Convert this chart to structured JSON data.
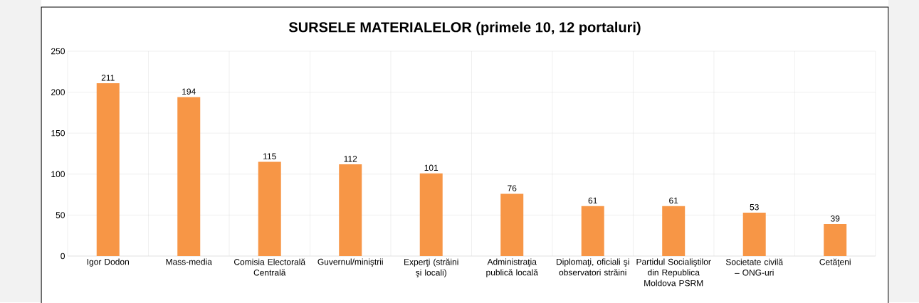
{
  "chart_data": {
    "type": "bar",
    "title": "SURSELE MATERIALELOR (primele 10, 12 portaluri)",
    "categories": [
      "Igor Dodon",
      "Mass-media",
      "Comisia Electorală Centrală",
      "Guvernul/miniştrii",
      "Experţi (străini şi locali)",
      "Administraţia publică locală",
      "Diplomaţi, oficiali şi observatori străini",
      "Partidul Socialiştilor din Republica Moldova PSRM",
      "Societate civilă – ONG-uri",
      "Cetăţeni"
    ],
    "values": [
      211,
      194,
      115,
      112,
      101,
      76,
      61,
      61,
      53,
      39
    ],
    "color": "#f79646",
    "ylim": [
      0,
      250
    ],
    "yticks": [
      0,
      50,
      100,
      150,
      200,
      250
    ],
    "grid": true,
    "data_labels": true
  }
}
